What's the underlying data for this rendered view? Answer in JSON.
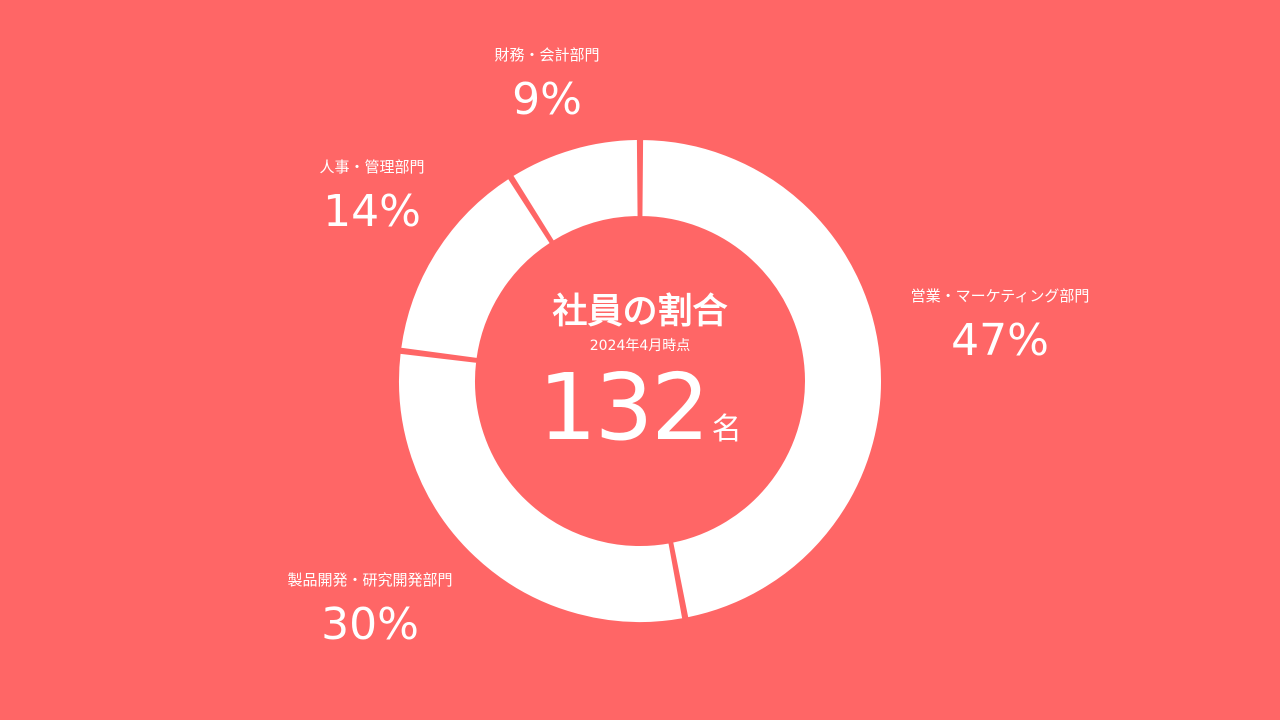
{
  "chart_data": {
    "type": "pie",
    "variant": "donut",
    "title": "社員の割合",
    "subtitle": "2024年4月時点",
    "total": {
      "value": "132",
      "unit": "名"
    },
    "categories": [
      "営業・マーケティング部門",
      "製品開発・研究開発部門",
      "人事・管理部門",
      "財務・会計部門"
    ],
    "values": [
      47,
      30,
      14,
      9
    ],
    "value_labels": [
      "47%",
      "30%",
      "14%",
      "9%"
    ],
    "start_angle": "12 o'clock",
    "direction": "clockwise",
    "legend": "none",
    "colors": {
      "background": "#FF6666",
      "slice": "#FFFFFF",
      "text": "#FFFFFF"
    }
  }
}
